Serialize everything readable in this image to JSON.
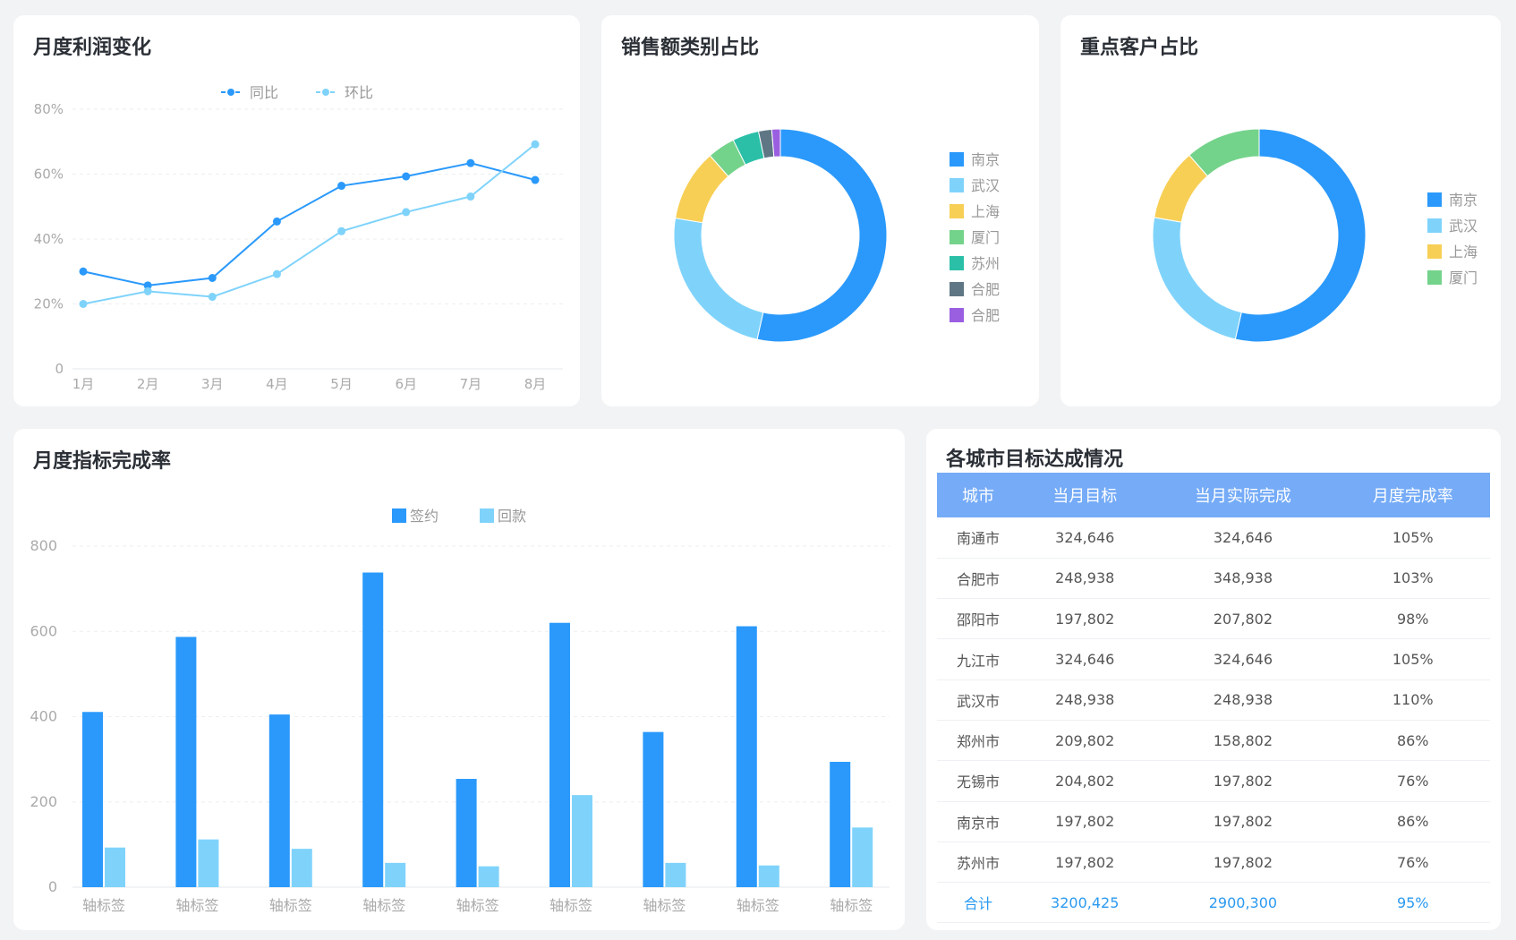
{
  "colors": {
    "primary": "#2a99fb",
    "secondary": "#7fd3fb",
    "yellow": "#f7cf55",
    "green": "#74d38b",
    "teal": "#2bbfa8",
    "slate": "#5f7685",
    "purple": "#9a5fe0",
    "table_header": "#75abf7",
    "total_text": "#2b9af0"
  },
  "chart_data": [
    {
      "type": "line",
      "title": "月度利润变化",
      "categories": [
        "1月",
        "2月",
        "3月",
        "4月",
        "5月",
        "6月",
        "7月",
        "8月"
      ],
      "yticks": [
        "0",
        "20%",
        "40%",
        "60%",
        "80%"
      ],
      "ylim": [
        0,
        80
      ],
      "grid": true,
      "legend": "top",
      "series": [
        {
          "name": "同比",
          "values": [
            30,
            25.7,
            28,
            45.4,
            56.4,
            59.3,
            63.4,
            58.2
          ]
        },
        {
          "name": "环比",
          "values": [
            20,
            23.9,
            22.2,
            29.2,
            42.4,
            48.3,
            53.1,
            69.2
          ]
        }
      ]
    },
    {
      "type": "pie",
      "title": "销售额类别占比",
      "donut": true,
      "legend": "right",
      "labels": [
        "南京",
        "武汉",
        "上海",
        "厦门",
        "苏州",
        "合肥",
        "合肥"
      ],
      "values": [
        53.5,
        24.1,
        10.9,
        4.2,
        4.0,
        2.0,
        1.3
      ]
    },
    {
      "type": "pie",
      "title": "重点客户占比",
      "donut": true,
      "legend": "right",
      "labels": [
        "南京",
        "武汉",
        "上海",
        "厦门"
      ],
      "values": [
        53.6,
        24.1,
        10.9,
        11.4
      ]
    },
    {
      "type": "bar",
      "title": "月度指标完成率",
      "categories": [
        "轴标签",
        "轴标签",
        "轴标签",
        "轴标签",
        "轴标签",
        "轴标签",
        "轴标签",
        "轴标签",
        "轴标签"
      ],
      "yticks": [
        "0",
        "200",
        "400",
        "600",
        "800"
      ],
      "ylim": [
        0,
        800
      ],
      "grid": true,
      "legend": "top",
      "series": [
        {
          "name": "签约",
          "values": [
            411,
            587,
            405,
            738,
            254,
            620,
            364,
            612,
            294
          ]
        },
        {
          "name": "回款",
          "values": [
            93,
            112,
            90,
            57,
            49,
            216,
            57,
            51,
            140
          ]
        }
      ]
    }
  ],
  "table": {
    "title": "各城市目标达成情况",
    "headers": [
      "城市",
      "当月目标",
      "当月实际完成",
      "月度完成率"
    ],
    "rows": [
      [
        "南通市",
        "324,646",
        "324,646",
        "105%"
      ],
      [
        "合肥市",
        "248,938",
        "348,938",
        "103%"
      ],
      [
        "邵阳市",
        "197,802",
        "207,802",
        "98%"
      ],
      [
        "九江市",
        "324,646",
        "324,646",
        "105%"
      ],
      [
        "武汉市",
        "248,938",
        "248,938",
        "110%"
      ],
      [
        "郑州市",
        "209,802",
        "158,802",
        "86%"
      ],
      [
        "无锡市",
        "204,802",
        "197,802",
        "76%"
      ],
      [
        "南京市",
        "197,802",
        "197,802",
        "86%"
      ],
      [
        "苏州市",
        "197,802",
        "197,802",
        "76%"
      ]
    ],
    "total": [
      "合计",
      "3200,425",
      "2900,300",
      "95%"
    ]
  }
}
